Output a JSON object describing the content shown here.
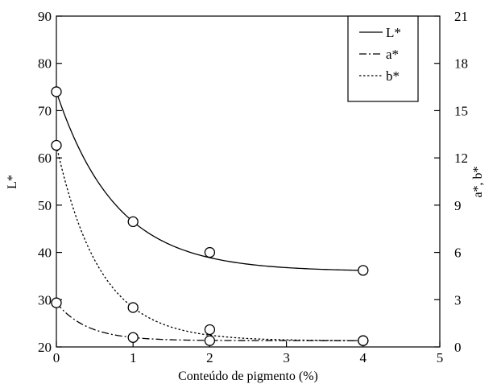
{
  "chart_data": {
    "type": "line",
    "xlabel": "Conteúdo de pigmento (%)",
    "ylabel": "L*",
    "y2label": "a*, b*",
    "xlim": [
      0,
      5
    ],
    "ylim": [
      20,
      90
    ],
    "y2lim": [
      0,
      21
    ],
    "xticks": [
      "0",
      "1",
      "2",
      "3",
      "4",
      "5"
    ],
    "yticks": [
      "20",
      "30",
      "40",
      "50",
      "60",
      "70",
      "80",
      "90"
    ],
    "y2ticks": [
      "0",
      "3",
      "6",
      "9",
      "12",
      "15",
      "18",
      "21"
    ],
    "grid": false,
    "legend": "top-right",
    "series": [
      {
        "name": "L*",
        "axis": "left",
        "line": "solid",
        "x": [
          0,
          1,
          2,
          4
        ],
        "y": [
          74,
          46.5,
          40,
          36.2
        ]
      },
      {
        "name": "a*",
        "axis": "right",
        "line": "dash-dot",
        "x": [
          0,
          1,
          2,
          4
        ],
        "y": [
          2.8,
          0.6,
          0.4,
          0.4
        ]
      },
      {
        "name": "b*",
        "axis": "right",
        "line": "dotted",
        "x": [
          0,
          1,
          2,
          4
        ],
        "y": [
          12.8,
          2.5,
          1.1,
          0.4
        ]
      }
    ]
  }
}
